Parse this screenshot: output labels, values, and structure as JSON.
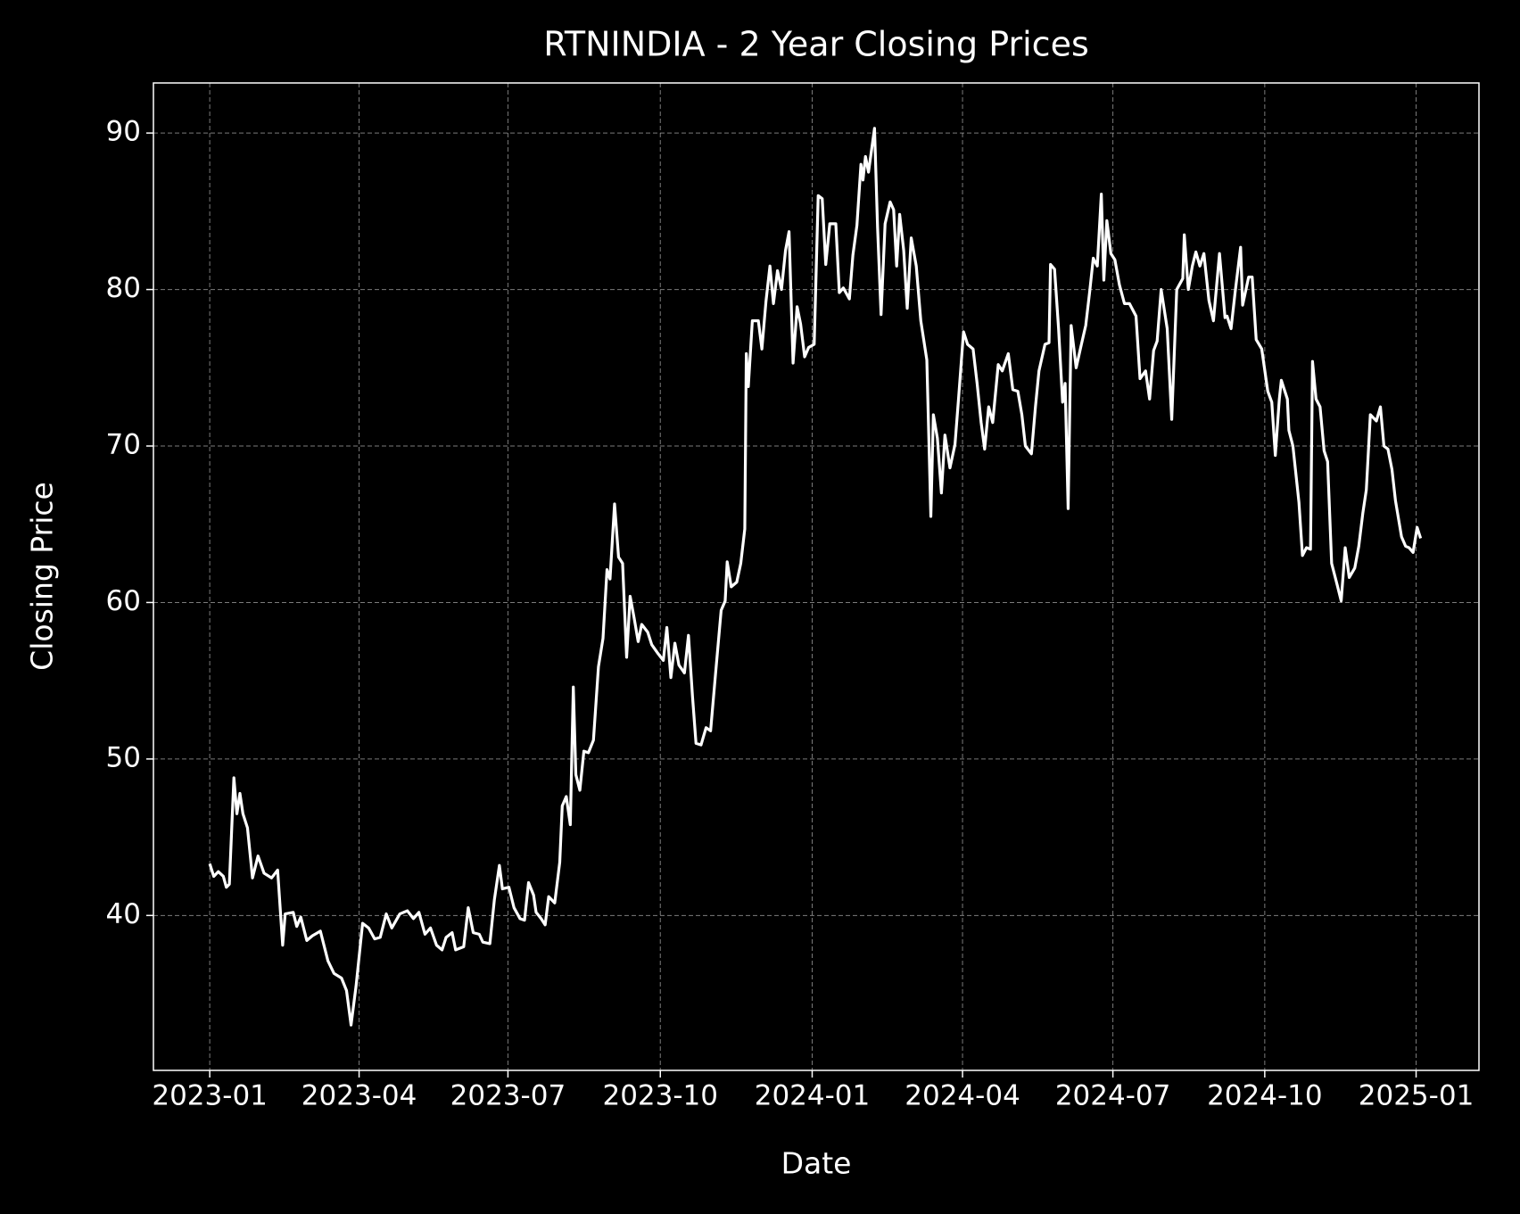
{
  "chart_data": {
    "type": "line",
    "title": "RTNINDIA - 2 Year Closing Prices",
    "x_label": "Date",
    "y_label": "Closing Price",
    "color": "#ffffff",
    "grid": true,
    "xlim": [
      -1.12,
      25.24
    ],
    "xticks": [
      {
        "value": 0,
        "label": "2023-01"
      },
      {
        "value": 2.97,
        "label": "2023-04"
      },
      {
        "value": 5.93,
        "label": "2023-07"
      },
      {
        "value": 8.96,
        "label": "2023-10"
      },
      {
        "value": 11.98,
        "label": "2024-01"
      },
      {
        "value": 14.97,
        "label": "2024-04"
      },
      {
        "value": 17.96,
        "label": "2024-07"
      },
      {
        "value": 20.98,
        "label": "2024-10"
      },
      {
        "value": 23.99,
        "label": "2025-01"
      }
    ],
    "ylim": [
      30.1,
      93.2
    ],
    "yticks": [
      40,
      50,
      60,
      70,
      80,
      90
    ],
    "x": [
      0,
      0.08,
      0.17,
      0.27,
      0.33,
      0.39,
      0.48,
      0.54,
      0.6,
      0.66,
      0.75,
      0.85,
      0.96,
      1.08,
      1.23,
      1.35,
      1.45,
      1.5,
      1.66,
      1.73,
      1.81,
      1.93,
      2.04,
      2.2,
      2.35,
      2.47,
      2.62,
      2.72,
      2.81,
      2.91,
      3.04,
      3.16,
      3.28,
      3.39,
      3.51,
      3.62,
      3.78,
      3.93,
      4.05,
      4.16,
      4.28,
      4.39,
      4.51,
      4.62,
      4.7,
      4.82,
      4.89,
      5.05,
      5.14,
      5.24,
      5.36,
      5.43,
      5.57,
      5.66,
      5.76,
      5.82,
      5.95,
      6.05,
      6.17,
      6.26,
      6.34,
      6.44,
      6.49,
      6.59,
      6.67,
      6.74,
      6.86,
      6.96,
      7.01,
      7.09,
      7.17,
      7.23,
      7.28,
      7.36,
      7.44,
      7.53,
      7.63,
      7.73,
      7.82,
      7.9,
      7.96,
      8.05,
      8.13,
      8.21,
      8.29,
      8.36,
      8.44,
      8.52,
      8.59,
      8.71,
      8.79,
      8.9,
      9.02,
      9.09,
      9.17,
      9.25,
      9.33,
      9.44,
      9.52,
      9.6,
      9.67,
      9.77,
      9.87,
      9.96,
      10.06,
      10.17,
      10.25,
      10.29,
      10.37,
      10.48,
      10.56,
      10.64,
      10.67,
      10.71,
      10.79,
      10.91,
      10.98,
      11.06,
      11.14,
      11.21,
      11.29,
      11.37,
      11.45,
      11.52,
      11.6,
      11.68,
      11.75,
      11.83,
      11.91,
      12.02,
      12.1,
      12.18,
      12.25,
      12.33,
      12.45,
      12.52,
      12.6,
      12.72,
      12.79,
      12.87,
      12.95,
      12.99,
      13.04,
      13.1,
      13.22,
      13.28,
      13.35,
      13.43,
      13.53,
      13.6,
      13.66,
      13.72,
      13.8,
      13.87,
      13.95,
      14.05,
      14.14,
      14.26,
      14.34,
      14.39,
      14.47,
      14.55,
      14.62,
      14.72,
      14.82,
      14.89,
      14.99,
      15.07,
      15.18,
      15.26,
      15.34,
      15.41,
      15.49,
      15.57,
      15.68,
      15.76,
      15.88,
      15.97,
      16.07,
      16.15,
      16.22,
      16.34,
      16.42,
      16.49,
      16.61,
      16.69,
      16.72,
      16.8,
      16.88,
      16.96,
      17.01,
      17.07,
      17.13,
      17.23,
      17.32,
      17.42,
      17.5,
      17.57,
      17.65,
      17.73,
      17.78,
      17.84,
      17.92,
      18.0,
      18.09,
      18.19,
      18.29,
      18.42,
      18.5,
      18.61,
      18.69,
      18.77,
      18.84,
      18.92,
      19.04,
      19.13,
      19.23,
      19.35,
      19.38,
      19.46,
      19.54,
      19.61,
      19.69,
      19.77,
      19.87,
      19.96,
      20.08,
      20.19,
      20.23,
      20.31,
      20.39,
      20.5,
      20.54,
      20.66,
      20.73,
      20.81,
      20.92,
      21.04,
      21.12,
      21.19,
      21.27,
      21.31,
      21.43,
      21.46,
      21.54,
      21.66,
      21.73,
      21.81,
      21.89,
      21.93,
      22.0,
      22.08,
      22.16,
      22.23,
      22.31,
      22.43,
      22.5,
      22.58,
      22.66,
      22.77,
      22.85,
      22.93,
      23.0,
      23.08,
      23.2,
      23.28,
      23.35,
      23.43,
      23.51,
      23.58,
      23.7,
      23.78,
      23.85,
      23.93,
      24.01,
      24.08
    ],
    "values": [
      43.3,
      42.5,
      42.8,
      42.5,
      41.8,
      42,
      48.8,
      46.5,
      47.8,
      46.5,
      45.6,
      42.4,
      43.8,
      42.7,
      42.4,
      42.9,
      38.1,
      40.1,
      40.2,
      39.3,
      39.9,
      38.4,
      38.7,
      39.0,
      37.1,
      36.3,
      36.0,
      35.2,
      33.0,
      35.5,
      39.5,
      39.2,
      38.5,
      38.6,
      40.1,
      39.2,
      40.1,
      40.3,
      39.8,
      40.2,
      38.8,
      39.2,
      38.1,
      37.8,
      38.6,
      38.9,
      37.8,
      38.0,
      40.5,
      38.9,
      38.8,
      38.3,
      38.2,
      41.0,
      43.2,
      41.7,
      41.8,
      40.5,
      39.8,
      39.7,
      42.1,
      41.3,
      40.2,
      39.8,
      39.4,
      41.2,
      40.8,
      43.4,
      47.0,
      47.6,
      45.8,
      54.6,
      49.0,
      48.0,
      50.5,
      50.4,
      51.2,
      55.9,
      57.7,
      62.1,
      61.5,
      66.3,
      62.9,
      62.5,
      56.5,
      60.4,
      59.0,
      57.5,
      58.6,
      58.1,
      57.3,
      56.8,
      56.3,
      58.4,
      55.2,
      57.4,
      56.0,
      55.5,
      57.9,
      54.0,
      51.0,
      50.9,
      52.0,
      51.8,
      55.5,
      59.5,
      60.1,
      62.6,
      61.0,
      61.3,
      62.5,
      64.7,
      75.9,
      73.8,
      78.0,
      78.0,
      76.2,
      79.2,
      81.5,
      79.1,
      81.2,
      80.0,
      82.5,
      83.7,
      75.3,
      78.9,
      77.8,
      75.7,
      76.3,
      76.5,
      86.0,
      85.8,
      81.6,
      84.2,
      84.2,
      79.8,
      80.1,
      79.4,
      82.2,
      84.1,
      88.0,
      87.0,
      88.5,
      87.5,
      90.3,
      84.0,
      78.4,
      84.2,
      85.6,
      85.1,
      81.5,
      84.8,
      82.5,
      78.8,
      83.3,
      81.5,
      78.0,
      75.5,
      65.5,
      72.0,
      70.5,
      67.0,
      70.7,
      68.6,
      70.1,
      73.0,
      77.3,
      76.5,
      76.2,
      74.0,
      71.5,
      69.8,
      72.5,
      71.5,
      75.2,
      74.8,
      75.9,
      73.6,
      73.5,
      72.0,
      70.0,
      69.5,
      72.5,
      74.8,
      76.5,
      76.6,
      81.6,
      81.3,
      77.5,
      72.8,
      74.0,
      66.0,
      77.7,
      75.0,
      76.3,
      77.7,
      79.9,
      82.0,
      81.5,
      86.1,
      80.6,
      84.4,
      82.3,
      81.9,
      80.3,
      79.1,
      79.1,
      78.3,
      74.3,
      74.8,
      73.0,
      76.1,
      76.7,
      80.0,
      77.5,
      71.7,
      80.0,
      80.7,
      83.5,
      80.0,
      81.5,
      82.4,
      81.5,
      82.3,
      79.3,
      78.0,
      82.3,
      78.2,
      78.3,
      77.5,
      79.8,
      82.7,
      79.0,
      80.8,
      80.8,
      76.8,
      76.2,
      73.5,
      72.8,
      69.4,
      73.0,
      74.2,
      73.0,
      71.0,
      70.0,
      66.4,
      63.0,
      63.5,
      63.4,
      75.4,
      73.0,
      72.5,
      69.7,
      69.0,
      62.5,
      61.0,
      60.1,
      63.5,
      61.6,
      62.2,
      63.6,
      65.7,
      67.2,
      72.0,
      71.6,
      72.5,
      70.0,
      69.8,
      68.5,
      66.5,
      64.2,
      63.6,
      63.5,
      63.2,
      64.8,
      64.1
    ]
  }
}
